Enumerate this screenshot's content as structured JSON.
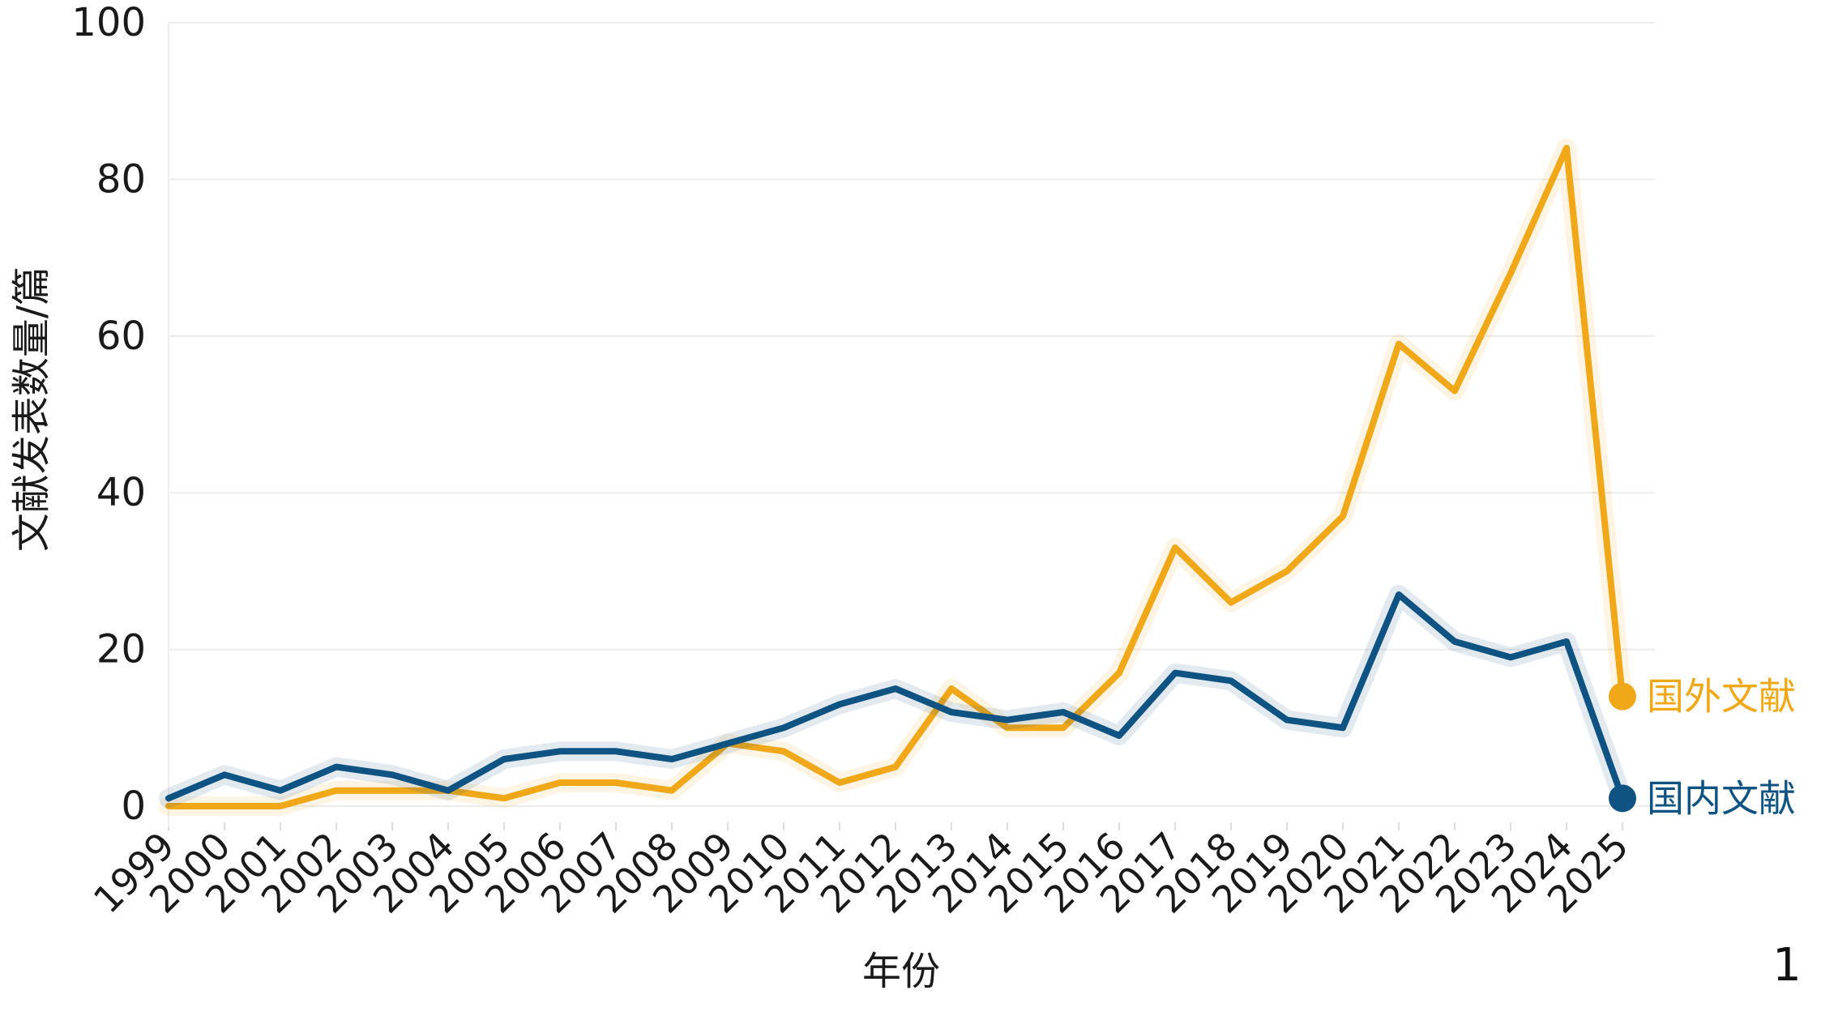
{
  "chart_data": {
    "type": "line",
    "title": "",
    "xlabel": "年份",
    "ylabel": "文献发表数量/篇",
    "ylim": [
      0,
      100
    ],
    "yticks": [
      0,
      20,
      40,
      60,
      80,
      100
    ],
    "grid": true,
    "legend_placement": "line-end labels, right",
    "x": [
      "1999",
      "2000",
      "2001",
      "2002",
      "2003",
      "2004",
      "2005",
      "2006",
      "2007",
      "2008",
      "2009",
      "2010",
      "2011",
      "2012",
      "2013",
      "2014",
      "2015",
      "2016",
      "2017",
      "2018",
      "2019",
      "2020",
      "2021",
      "2022",
      "2023",
      "2024",
      "2025"
    ],
    "series": [
      {
        "name": "国外文献",
        "color": "#F0A818",
        "values": [
          0,
          0,
          0,
          2,
          2,
          2,
          1,
          3,
          3,
          2,
          8,
          7,
          3,
          5,
          15,
          10,
          10,
          17,
          33,
          26,
          30,
          37,
          59,
          53,
          68,
          84,
          14
        ]
      },
      {
        "name": "国内文献",
        "color": "#0F5383",
        "values": [
          1,
          4,
          2,
          5,
          4,
          2,
          6,
          7,
          7,
          6,
          8,
          10,
          13,
          15,
          12,
          11,
          12,
          9,
          17,
          16,
          11,
          10,
          27,
          21,
          19,
          21,
          1
        ]
      }
    ],
    "panel_label": "1"
  }
}
